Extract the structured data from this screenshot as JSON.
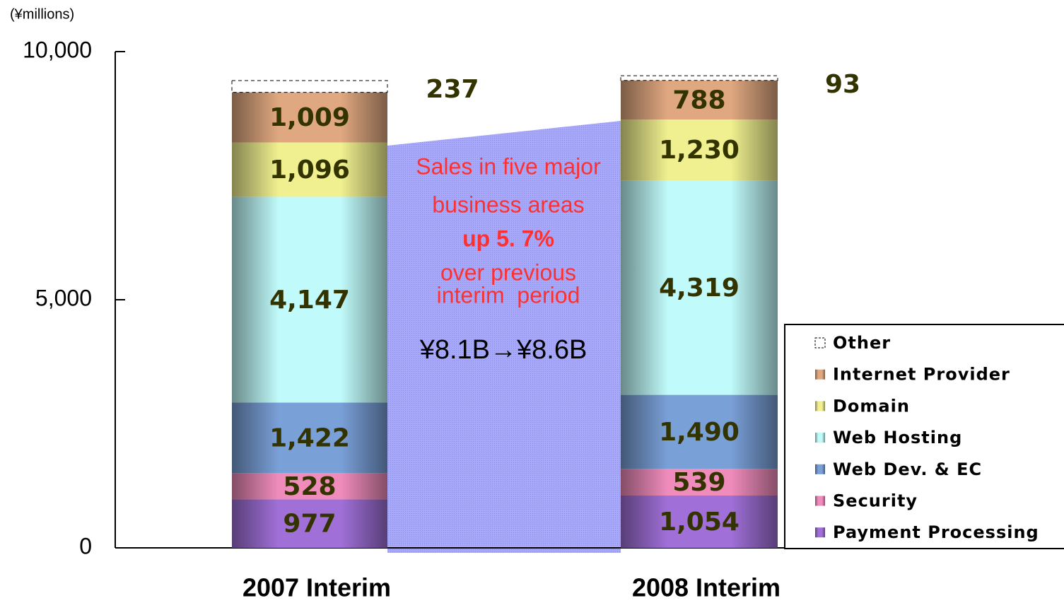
{
  "chart_data": {
    "type": "bar",
    "stacked": true,
    "unit_label": "(¥millions)",
    "categories": [
      "2007 Interim",
      "2008 Interim"
    ],
    "ylim": [
      0,
      10000
    ],
    "yticks": [
      0,
      {
        "value": 5000,
        "label": "5,000"
      },
      {
        "value": 10000,
        "label": "10,000"
      }
    ],
    "series": [
      {
        "name": "Payment Processing",
        "color": "#a070d8",
        "values": [
          977,
          1054
        ],
        "value_labels": [
          "977",
          "1,054"
        ]
      },
      {
        "name": "Security",
        "color": "#f08cbc",
        "values": [
          528,
          539
        ],
        "value_labels": [
          "528",
          "539"
        ]
      },
      {
        "name": "Web Dev. & EC",
        "color": "#7aa0d8",
        "values": [
          1422,
          1490
        ],
        "value_labels": [
          "1,422",
          "1,490"
        ]
      },
      {
        "name": "Web Hosting",
        "color": "#c0fafa",
        "values": [
          4147,
          4319
        ],
        "value_labels": [
          "4,147",
          "4,319"
        ]
      },
      {
        "name": "Domain",
        "color": "#f0f090",
        "values": [
          1096,
          1230
        ],
        "value_labels": [
          "1,096",
          "1,230"
        ]
      },
      {
        "name": "Internet Provider",
        "color": "#e0a880",
        "values": [
          1009,
          788
        ],
        "value_labels": [
          "1,009",
          "788"
        ]
      },
      {
        "name": "Other",
        "color": "#ffffff",
        "values": [
          237,
          93
        ],
        "value_labels": [
          "237",
          "93"
        ]
      }
    ],
    "annotations": [
      "Sales in five major",
      "business areas",
      "up 5. 7%",
      "over previous",
      "interim  period",
      "¥8.1B→¥8.6B"
    ]
  }
}
